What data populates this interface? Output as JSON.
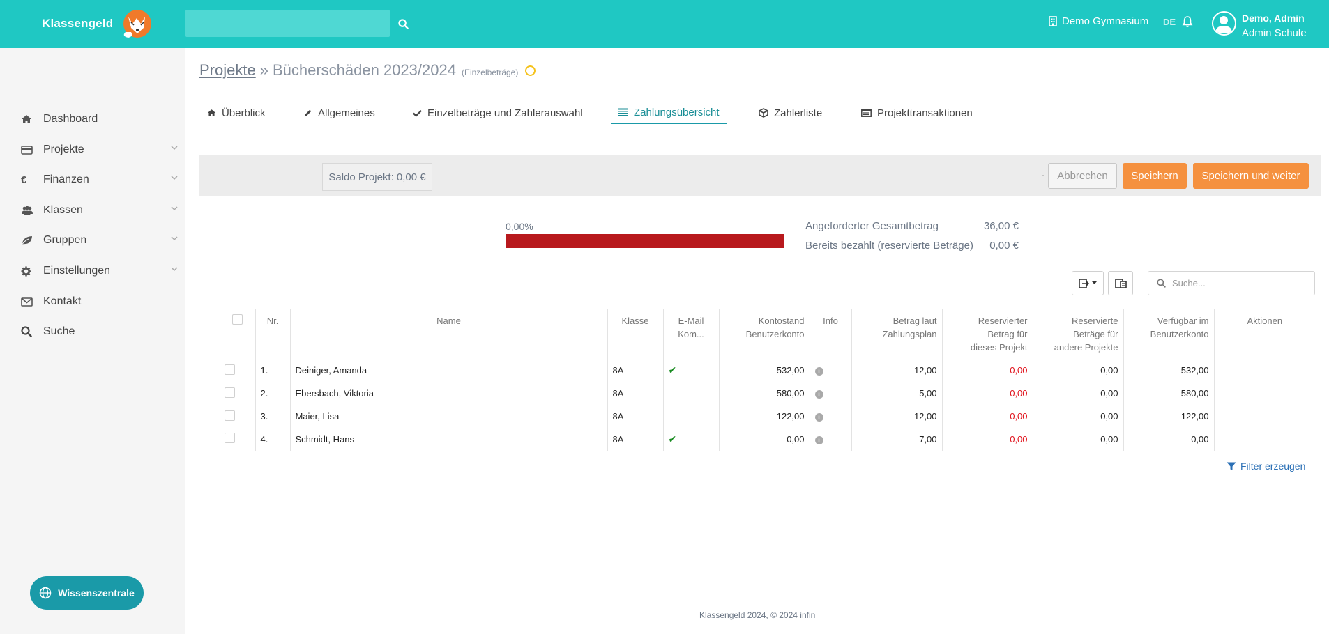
{
  "app": {
    "brand": "Klassengeld",
    "school": "Demo Gymnasium",
    "language": "DE",
    "user_name": "Demo, Admin",
    "user_school": "Admin Schule",
    "search_value": ""
  },
  "sidebar": {
    "items": [
      {
        "label": "Dashboard",
        "icon": "home-icon",
        "expandable": false
      },
      {
        "label": "Projekte",
        "icon": "credit-card-icon",
        "expandable": true
      },
      {
        "label": "Finanzen",
        "icon": "euro-icon",
        "expandable": true
      },
      {
        "label": "Klassen",
        "icon": "users-icon",
        "expandable": true
      },
      {
        "label": "Gruppen",
        "icon": "leaf-icon",
        "expandable": true
      },
      {
        "label": "Einstellungen",
        "icon": "gear-icon",
        "expandable": true
      },
      {
        "label": "Kontakt",
        "icon": "envelope-icon",
        "expandable": false
      },
      {
        "label": "Suche",
        "icon": "search-icon",
        "expandable": false
      }
    ],
    "help_button": "Wissenszentrale"
  },
  "breadcrumb": {
    "root": "Projekte",
    "separator": "»",
    "title": "Bücherschäden 2023/2024",
    "subtitle": "(Einzelbeträge)"
  },
  "tabs": [
    {
      "label": "Überblick",
      "icon": "home-icon",
      "active": false
    },
    {
      "label": "Allgemeines",
      "icon": "pencil-icon",
      "active": false
    },
    {
      "label": "Einzelbeträge und Zahlerauswahl",
      "icon": "check-icon",
      "active": false
    },
    {
      "label": "Zahlungsübersicht",
      "icon": "list-icon",
      "active": true
    },
    {
      "label": "Zahlerliste",
      "icon": "cube-icon",
      "active": false
    },
    {
      "label": "Projekttransaktionen",
      "icon": "table-icon",
      "active": false
    }
  ],
  "actions": {
    "saldo": "Saldo Projekt: 0,00 €",
    "dot": "·",
    "cancel": "Abbrechen",
    "save": "Speichern",
    "save_next": "Speichern und weiter"
  },
  "progress": {
    "percent_label": "0,00%",
    "fraction": 0.0,
    "requested_label": "Angeforderter Gesamtbetrag",
    "requested_value": "36,00 €",
    "paid_label": "Bereits bezahlt (reservierte Beträge)",
    "paid_value": "0,00 €"
  },
  "table_tools": {
    "search_placeholder": "Suche..."
  },
  "table": {
    "headers": {
      "nr": "Nr.",
      "name": "Name",
      "klasse": "Klasse",
      "email_1": "E-Mail",
      "email_2": "Kom...",
      "konto_1": "Kontostand",
      "konto_2": "Benutzerkonto",
      "info": "Info",
      "betrag_1": "Betrag laut",
      "betrag_2": "Zahlungsplan",
      "res_1": "Reservierter",
      "res_2": "Betrag für",
      "res_3": "dieses Projekt",
      "resand_1": "Reservierte",
      "resand_2": "Beträge für",
      "resand_3": "andere Projekte",
      "verf_1": "Verfügbar im",
      "verf_2": "Benutzerkonto",
      "aktionen": "Aktionen"
    },
    "rows": [
      {
        "nr": "1.",
        "name": "Deiniger, Amanda",
        "klasse": "8A",
        "email": true,
        "kontostand": "532,00",
        "betrag": "12,00",
        "reserviert": "0,00",
        "andere": "0,00",
        "verfuegbar": "532,00"
      },
      {
        "nr": "2.",
        "name": "Ebersbach, Viktoria",
        "klasse": "8A",
        "email": false,
        "kontostand": "580,00",
        "betrag": "5,00",
        "reserviert": "0,00",
        "andere": "0,00",
        "verfuegbar": "580,00"
      },
      {
        "nr": "3.",
        "name": "Maier, Lisa",
        "klasse": "8A",
        "email": false,
        "kontostand": "122,00",
        "betrag": "12,00",
        "reserviert": "0,00",
        "andere": "0,00",
        "verfuegbar": "122,00"
      },
      {
        "nr": "4.",
        "name": "Schmidt, Hans",
        "klasse": "8A",
        "email": true,
        "kontostand": "0,00",
        "betrag": "7,00",
        "reserviert": "0,00",
        "andere": "0,00",
        "verfuegbar": "0,00"
      }
    ]
  },
  "filter_link": "Filter erzeugen",
  "footer": "Klassengeld 2024, © 2024 infin",
  "colors": {
    "topbar": "#1fc8c3",
    "accent": "#1a9aa8",
    "orange": "#f5913f",
    "progress_bar": "#b8191d",
    "negative": "#e0101a"
  }
}
